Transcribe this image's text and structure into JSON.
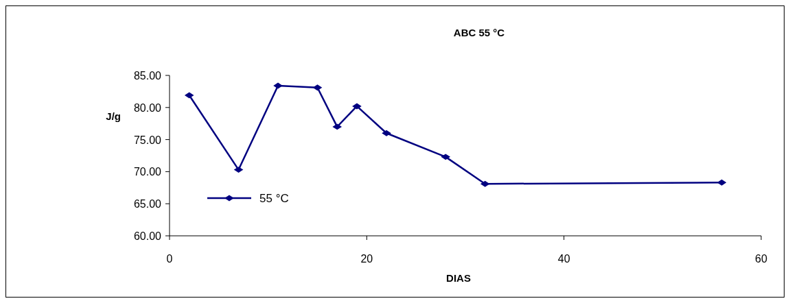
{
  "chart_data": {
    "type": "line",
    "title": "ABC 55 °C",
    "xlabel": "DIAS",
    "ylabel": "J/g",
    "x": [
      2,
      7,
      11,
      15,
      17,
      19,
      22,
      28,
      32,
      56
    ],
    "series": [
      {
        "name": "55 °C",
        "color": "#000080",
        "values": [
          81.9,
          70.3,
          83.4,
          83.1,
          77.0,
          80.2,
          76.0,
          72.3,
          68.1,
          68.3
        ]
      }
    ],
    "xlim": [
      0,
      60
    ],
    "xticks": [
      0,
      20,
      40,
      60
    ],
    "ylim": [
      60,
      85
    ],
    "yticks": [
      {
        "value": 60,
        "label": "60.00"
      },
      {
        "value": 65,
        "label": "65.00"
      },
      {
        "value": 70,
        "label": "70.00"
      },
      {
        "value": 75,
        "label": "75.00"
      },
      {
        "value": 80,
        "label": "80.00"
      },
      {
        "value": 85,
        "label": "85.00"
      }
    ],
    "marker": "diamond",
    "line_style": "solid",
    "legend": "bottom left",
    "grid": false
  }
}
